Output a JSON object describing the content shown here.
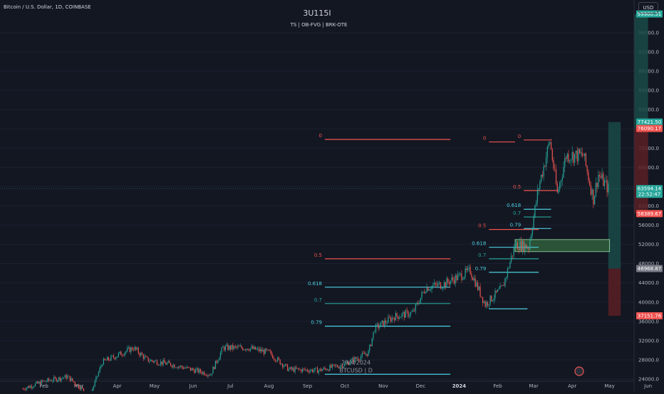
{
  "header": {
    "symbol": "Bitcoin / U.S. Dollar, 1D, COINBASE",
    "watermark": "3U115I",
    "indicators": "TS  |  OB-FVG  |  BRK-OTE",
    "currency": "USD"
  },
  "colors": {
    "background": "#131722",
    "candle_up": "#26a69a",
    "candle_down": "#ef5350",
    "fib_high": "#ef5350",
    "fib_618": "#4dd0e1",
    "fib_07": "#26a69a",
    "target_zone": "#1a4a47",
    "stop_zone": "#5a2025",
    "order_block": "#2e5a3a"
  },
  "chart_data": {
    "type": "candlestick",
    "title": "",
    "x_axis": {
      "ticks": [
        "Feb",
        "Mar",
        "Apr",
        "May",
        "Jun",
        "Jul",
        "Aug",
        "Sep",
        "Oct",
        "Nov",
        "Dec",
        "2024",
        "Feb",
        "Mar",
        "Apr",
        "May",
        "Jun"
      ]
    },
    "y_axis": {
      "range": [
        24000,
        100000
      ],
      "ticks": [
        96000,
        92000,
        88000,
        84000,
        80000,
        76000,
        72000,
        68000,
        64000,
        60000,
        56000,
        52000,
        48000,
        44000,
        40000,
        36000,
        32000,
        28000,
        24000
      ]
    },
    "price_path": [
      [
        "2023-01-15",
        22000
      ],
      [
        "2023-02-01",
        23500
      ],
      [
        "2023-02-20",
        24500
      ],
      [
        "2023-03-10",
        20500
      ],
      [
        "2023-03-20",
        27500
      ],
      [
        "2023-04-14",
        30500
      ],
      [
        "2023-04-25",
        28000
      ],
      [
        "2023-05-15",
        27000
      ],
      [
        "2023-06-15",
        25000
      ],
      [
        "2023-06-25",
        30500
      ],
      [
        "2023-07-15",
        30500
      ],
      [
        "2023-08-01",
        29500
      ],
      [
        "2023-08-17",
        26000
      ],
      [
        "2023-09-10",
        25800
      ],
      [
        "2023-09-30",
        27000
      ],
      [
        "2023-10-20",
        29500
      ],
      [
        "2023-10-25",
        34500
      ],
      [
        "2023-11-10",
        37000
      ],
      [
        "2023-11-25",
        37800
      ],
      [
        "2023-12-05",
        43000
      ],
      [
        "2023-12-20",
        43800
      ],
      [
        "2024-01-10",
        46500
      ],
      [
        "2024-01-22",
        39500
      ],
      [
        "2024-02-05",
        43000
      ],
      [
        "2024-02-15",
        52000
      ],
      [
        "2024-02-26",
        51500
      ],
      [
        "2024-03-05",
        64000
      ],
      [
        "2024-03-14",
        73500
      ],
      [
        "2024-03-20",
        62500
      ],
      [
        "2024-03-27",
        70500
      ],
      [
        "2024-04-10",
        70500
      ],
      [
        "2024-04-18",
        61500
      ],
      [
        "2024-04-22",
        66500
      ],
      [
        "2024-04-30",
        63594
      ]
    ],
    "price_labels": [
      {
        "text": "99900.51",
        "price": 99900,
        "color": "#26a69a"
      },
      {
        "text": "77421.50",
        "price": 77421,
        "color": "#26a69a"
      },
      {
        "text": "76090.17",
        "price": 76090,
        "color": "#ef5350"
      },
      {
        "text": "63594.14",
        "sub": "22:52:47",
        "price": 63594,
        "color": "#26a69a"
      },
      {
        "text": "58389.67",
        "price": 58389,
        "color": "#ef5350"
      },
      {
        "text": "46968.87",
        "price": 46969,
        "color": "#787b86"
      },
      {
        "text": "37151.76",
        "price": 37151,
        "color": "#ef5350"
      }
    ],
    "fib_levels": [
      {
        "label": "0",
        "price": 73800,
        "from": "2023-09-15",
        "to": "2023-12-25",
        "color": "fib_high"
      },
      {
        "label": "0.5",
        "price": 49000,
        "from": "2023-09-15",
        "to": "2023-12-25",
        "color": "fib_high"
      },
      {
        "label": "0.618",
        "price": 43100,
        "from": "2023-09-15",
        "to": "2023-12-25",
        "color": "fib_618"
      },
      {
        "label": "0.7",
        "price": 39700,
        "from": "2023-09-15",
        "to": "2023-12-25",
        "color": "fib_07"
      },
      {
        "label": "0.79",
        "price": 35000,
        "from": "2023-09-15",
        "to": "2023-12-25",
        "color": "fib_618"
      },
      {
        "label": "0",
        "price": 73300,
        "from": "2024-01-25",
        "to": "2024-02-15",
        "color": "fib_high"
      },
      {
        "label": "0.5",
        "price": 55100,
        "from": "2024-01-25",
        "to": "2024-03-05",
        "color": "fib_high"
      },
      {
        "label": "0.618",
        "price": 51400,
        "from": "2024-01-25",
        "to": "2024-03-05",
        "color": "fib_618"
      },
      {
        "label": "0.7",
        "price": 49000,
        "from": "2024-01-25",
        "to": "2024-03-05",
        "color": "fib_07"
      },
      {
        "label": "0.79",
        "price": 46200,
        "from": "2024-01-25",
        "to": "2024-03-05",
        "color": "fib_618"
      },
      {
        "label": "0",
        "price": 73700,
        "from": "2024-02-22",
        "to": "2024-03-15",
        "color": "fib_high"
      },
      {
        "label": "0.5",
        "price": 63200,
        "from": "2024-02-22",
        "to": "2024-03-20",
        "color": "fib_high"
      },
      {
        "label": "0.618",
        "price": 59300,
        "from": "2024-02-22",
        "to": "2024-03-15",
        "color": "fib_618"
      },
      {
        "label": "0.7",
        "price": 57700,
        "from": "2024-02-22",
        "to": "2024-03-15",
        "color": "fib_07"
      },
      {
        "label": "0.79",
        "price": 55300,
        "from": "2024-02-22",
        "to": "2024-03-15",
        "color": "fib_618"
      }
    ],
    "extra_lines": [
      {
        "price": 38600,
        "from": "2024-01-25",
        "to": "2024-02-25",
        "color": "fib_618"
      },
      {
        "price": 25000,
        "from": "2023-09-15",
        "to": "2023-12-25",
        "color": "fib_618"
      }
    ],
    "order_block": {
      "from": "2024-02-15",
      "to": "2024-05-01",
      "top": 53000,
      "bottom": 50500
    },
    "positions": [
      {
        "from": "2024-04-30",
        "to": "2024-05-10",
        "entry": 46969,
        "target": 77421,
        "stop": 37151
      },
      {
        "from": "2024-05-21",
        "to": "2024-06-01",
        "entry": 76090,
        "target": 99900,
        "stop": 58389
      }
    ],
    "annotations": [
      {
        "text": "29/4/2024",
        "date": "2023-10-10",
        "price": 27000
      },
      {
        "text": "BTCUSD | D",
        "date": "2023-10-10",
        "price": 25400
      }
    ],
    "current_price": 63594
  }
}
